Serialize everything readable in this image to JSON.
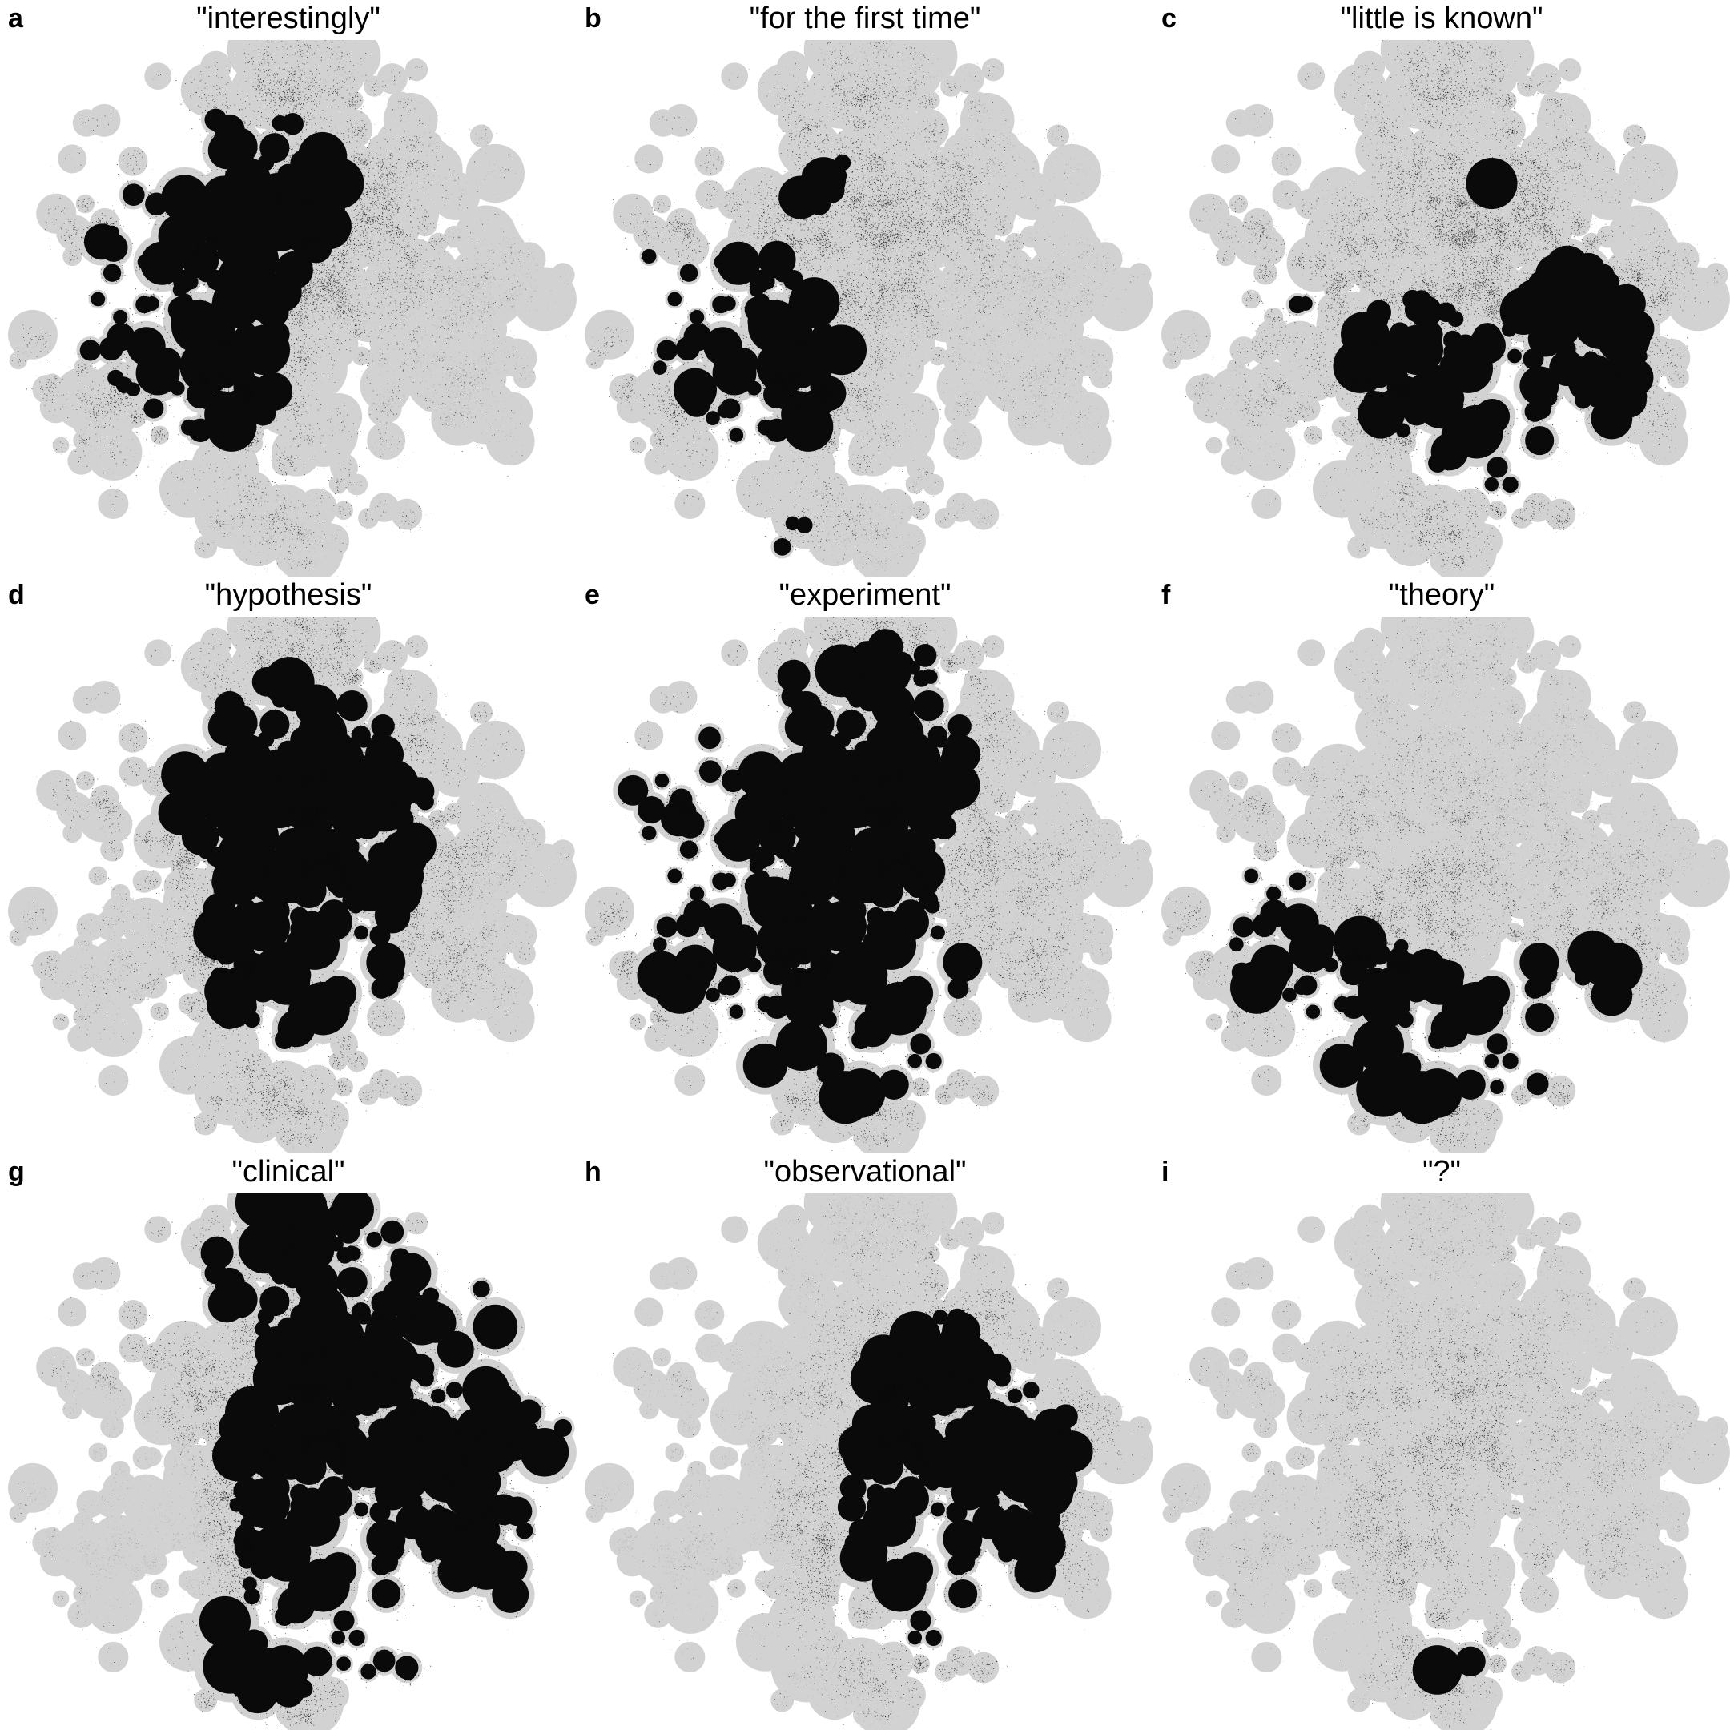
{
  "chart_data": {
    "type": "scatter",
    "title": "",
    "description": "3x3 grid of identical 2D t-SNE-style point-cloud maps of a document corpus; in each panel the documents whose text contains the quoted query term are colored black, all other documents are light gray.",
    "grid": {
      "rows": 3,
      "cols": 3
    },
    "legend": "black = documents containing the term; gray = all other documents",
    "colors": {
      "background": "#ffffff",
      "base_point_gray": "#d2d2d2",
      "speckle_gray_dark": "#8f8f8f",
      "speckle_gray_mid": "#b2b2b2",
      "speckle_gray_light": "#c7c7c7",
      "highlight_black": "#0a0a0a",
      "label_color": "#000000"
    },
    "panels": [
      {
        "label": "a",
        "title": "\"interestingly\"",
        "highlight": "dense in upper-left quadrant and along left side, sparse over right half",
        "density": {
          "base": 0.05,
          "max": 0.85,
          "blobs": [
            [
              -0.25,
              -0.55,
              0.28,
              0.55
            ],
            [
              0.05,
              -0.45,
              0.24,
              0.38
            ],
            [
              -0.5,
              -0.15,
              0.3,
              0.45
            ],
            [
              -0.45,
              0.3,
              0.28,
              0.38
            ],
            [
              -0.12,
              0.18,
              0.3,
              0.22
            ],
            [
              0.0,
              0.5,
              0.3,
              0.17
            ],
            [
              0.42,
              -0.32,
              0.18,
              0.2
            ],
            [
              -0.78,
              0.02,
              0.14,
              0.4
            ]
          ]
        }
      },
      {
        "label": "b",
        "title": "\"for the first time\"",
        "highlight": "dense on left side and lower-left, dark clump on far-left edge, sparse on right",
        "density": {
          "base": 0.05,
          "max": 0.9,
          "blobs": [
            [
              -0.4,
              0.35,
              0.28,
              0.62
            ],
            [
              -0.65,
              0.08,
              0.22,
              0.55
            ],
            [
              -0.3,
              -0.5,
              0.25,
              0.38
            ],
            [
              0.0,
              -0.58,
              0.2,
              0.28
            ],
            [
              -0.18,
              0.08,
              0.26,
              0.28
            ],
            [
              0.36,
              -0.36,
              0.16,
              0.25
            ],
            [
              -0.89,
              -0.17,
              0.07,
              1.0
            ],
            [
              -0.28,
              0.9,
              0.06,
              0.9
            ]
          ]
        }
      },
      {
        "label": "c",
        "title": "\"little is known\"",
        "highlight": "moderate sprinkle everywhere with clusters at top-center, left edge, center-left and a large bottom-right region",
        "density": {
          "base": 0.09,
          "max": 0.8,
          "blobs": [
            [
              0.0,
              -0.62,
              0.25,
              0.32
            ],
            [
              0.27,
              -0.42,
              0.2,
              0.27
            ],
            [
              -0.62,
              -0.05,
              0.16,
              0.5
            ],
            [
              -0.2,
              0.3,
              0.22,
              0.42
            ],
            [
              -0.12,
              0.0,
              0.2,
              0.25
            ],
            [
              0.45,
              0.35,
              0.3,
              0.5
            ],
            [
              0.67,
              0.13,
              0.2,
              0.32
            ],
            [
              0.2,
              0.57,
              0.25,
              0.38
            ],
            [
              0.55,
              -0.17,
              0.18,
              0.22
            ]
          ]
        }
      },
      {
        "label": "d",
        "title": "\"hypothesis\"",
        "highlight": "broad dark coverage through top-center, center and bottom-center; lighter at far left, lower-left and right edge",
        "density": {
          "base": 0.13,
          "max": 0.88,
          "blobs": [
            [
              0.0,
              -0.52,
              0.3,
              0.55
            ],
            [
              0.1,
              -0.15,
              0.28,
              0.45
            ],
            [
              -0.05,
              0.45,
              0.28,
              0.58
            ],
            [
              0.3,
              0.25,
              0.25,
              0.35
            ],
            [
              -0.3,
              -0.32,
              0.25,
              0.3
            ],
            [
              0.45,
              -0.35,
              0.2,
              0.25
            ],
            [
              -0.6,
              0.35,
              0.22,
              -0.1
            ],
            [
              0.82,
              0.1,
              0.2,
              -0.08
            ]
          ]
        }
      },
      {
        "label": "e",
        "title": "\"experiment\"",
        "highlight": "very dense solid black over left two-thirds and top-center; right side gray with moderate sprinkle",
        "density": {
          "base": 0.1,
          "max": 0.97,
          "blobs": [
            [
              -0.15,
              -0.42,
              0.35,
              0.9
            ],
            [
              -0.42,
              0.1,
              0.35,
              0.9
            ],
            [
              -0.15,
              0.38,
              0.3,
              0.72
            ],
            [
              -0.65,
              -0.15,
              0.25,
              0.7
            ],
            [
              0.1,
              0.62,
              0.22,
              0.42
            ],
            [
              0.15,
              -0.66,
              0.2,
              0.5
            ],
            [
              0.42,
              0.3,
              0.2,
              0.15
            ]
          ]
        }
      },
      {
        "label": "f",
        "title": "\"theory\"",
        "highlight": "mostly gray; heavy black clusters at mid-left edge and across the bottom band, small cluster at center",
        "density": {
          "base": 0.05,
          "max": 0.92,
          "blobs": [
            [
              -0.78,
              0.08,
              0.15,
              0.9
            ],
            [
              -0.55,
              0.3,
              0.2,
              0.55
            ],
            [
              -0.3,
              0.55,
              0.25,
              0.48
            ],
            [
              0.05,
              0.62,
              0.28,
              0.5
            ],
            [
              0.45,
              0.55,
              0.22,
              0.58
            ],
            [
              0.66,
              0.33,
              0.18,
              0.32
            ],
            [
              -0.02,
              0.08,
              0.12,
              0.25
            ],
            [
              -0.35,
              -0.3,
              0.3,
              0.1
            ]
          ]
        }
      },
      {
        "label": "g",
        "title": "\"clinical\"",
        "highlight": "near-solid black over right half, top and bottom; gray gaps at top-center-left, center-left and lower-left",
        "density": {
          "base": 0.2,
          "max": 0.97,
          "blobs": [
            [
              0.5,
              -0.15,
              0.4,
              0.9
            ],
            [
              0.45,
              0.4,
              0.35,
              0.9
            ],
            [
              0.1,
              0.2,
              0.3,
              0.6
            ],
            [
              0.0,
              -0.75,
              0.22,
              0.7
            ],
            [
              -0.42,
              -0.45,
              0.18,
              0.5
            ],
            [
              0.2,
              -0.45,
              0.25,
              0.5
            ],
            [
              -0.2,
              0.75,
              0.2,
              0.5
            ],
            [
              -0.18,
              -0.42,
              0.18,
              -0.6
            ],
            [
              -0.55,
              0.25,
              0.25,
              -0.5
            ],
            [
              -0.78,
              -0.05,
              0.2,
              -0.35
            ],
            [
              -0.32,
              0.5,
              0.2,
              -0.3
            ]
          ]
        }
      },
      {
        "label": "h",
        "title": "\"observational\"",
        "highlight": "left half almost entirely gray; dense dark vertical band right of center and lower-right, small clump bottom-center-left",
        "density": {
          "base": 0.02,
          "max": 0.9,
          "blobs": [
            [
              0.35,
              -0.4,
              0.22,
              0.55
            ],
            [
              0.3,
              0.0,
              0.28,
              0.68
            ],
            [
              0.45,
              0.35,
              0.28,
              0.72
            ],
            [
              0.1,
              0.3,
              0.18,
              0.3
            ],
            [
              0.76,
              -0.1,
              0.15,
              0.42
            ],
            [
              0.15,
              -0.2,
              0.15,
              0.25
            ],
            [
              -0.25,
              0.6,
              0.08,
              0.55
            ],
            [
              0.2,
              0.76,
              0.15,
              0.38
            ]
          ]
        }
      },
      {
        "label": "i",
        "title": "\"?\"",
        "highlight": "light sprinkle over the whole map with mild clusters at center and bottom-center",
        "density": {
          "base": 0.06,
          "max": 0.75,
          "blobs": [
            [
              0.0,
              0.0,
              0.15,
              0.2
            ],
            [
              0.0,
              0.6,
              0.18,
              0.3
            ],
            [
              0.05,
              0.78,
              0.1,
              0.5
            ],
            [
              0.35,
              0.45,
              0.25,
              0.15
            ],
            [
              -0.3,
              0.15,
              0.2,
              0.1
            ],
            [
              -0.15,
              -0.35,
              0.2,
              0.1
            ],
            [
              0.3,
              -0.2,
              0.2,
              0.08
            ]
          ]
        }
      }
    ]
  }
}
